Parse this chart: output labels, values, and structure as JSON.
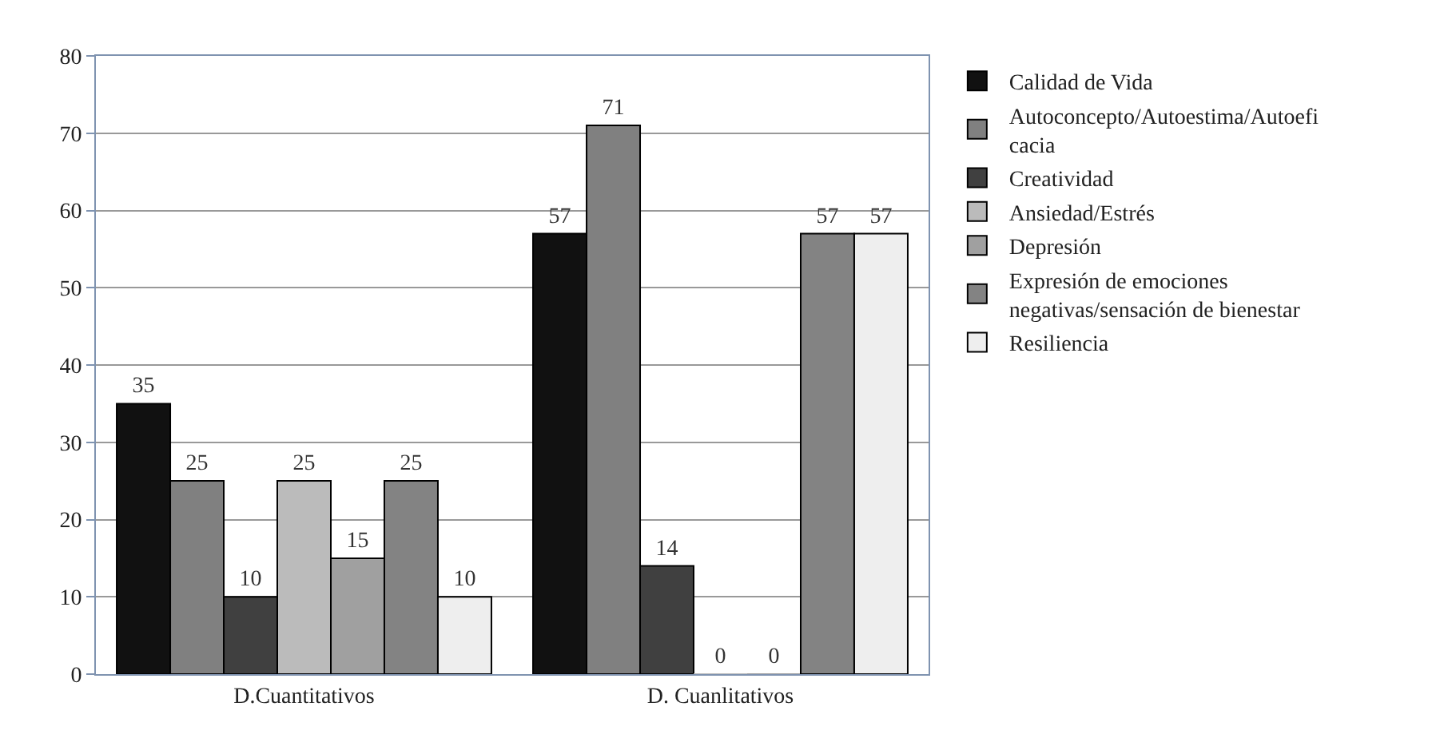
{
  "chart_data": {
    "type": "bar",
    "categories": [
      "D.Cuantitativos",
      "D. Cuanlitativos"
    ],
    "series": [
      {
        "name": "Calidad de Vida",
        "color": "#111111",
        "values": [
          35,
          57
        ]
      },
      {
        "name": "Autoconcepto/Autoestima/Autoeficacia",
        "color": "#808080",
        "values": [
          25,
          71
        ]
      },
      {
        "name": "Creatividad",
        "color": "#404040",
        "values": [
          10,
          14
        ]
      },
      {
        "name": "Ansiedad/Estrés",
        "color": "#bbbbbb",
        "values": [
          25,
          0
        ]
      },
      {
        "name": "Depresión",
        "color": "#a0a0a0",
        "values": [
          15,
          0
        ]
      },
      {
        "name": "Expresión de emociones negativas/sensación de bienestar",
        "color": "#838383",
        "values": [
          25,
          57
        ]
      },
      {
        "name": "Resiliencia",
        "color": "#eeeeee",
        "values": [
          10,
          57
        ]
      }
    ],
    "ylim": [
      0,
      80
    ],
    "yticks": [
      0,
      10,
      20,
      30,
      40,
      50,
      60,
      70,
      80
    ],
    "grid": "y",
    "legend": "right",
    "data_labels": true
  }
}
